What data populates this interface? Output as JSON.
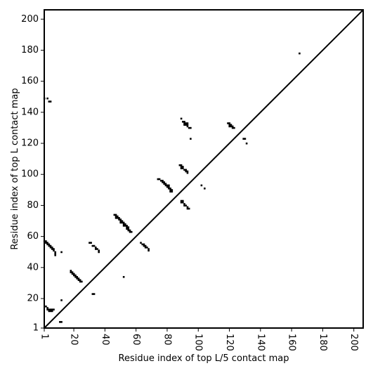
{
  "chart_data": {
    "type": "scatter",
    "xlabel": "Residue index of top L/5 contact map",
    "ylabel": "Residue index of top L contact map",
    "xlim": [
      1,
      206
    ],
    "ylim": [
      1,
      206
    ],
    "xticks": [
      1,
      20,
      40,
      60,
      80,
      100,
      120,
      140,
      160,
      180,
      200
    ],
    "yticks": [
      1,
      20,
      40,
      60,
      80,
      100,
      120,
      140,
      160,
      180,
      200
    ],
    "grid": false,
    "diagonal": true,
    "colors": {
      "points": "#000000",
      "diagonal": "#000000",
      "frame": "#000000"
    },
    "points": [
      [
        1,
        57
      ],
      [
        2,
        57
      ],
      [
        2,
        56
      ],
      [
        3,
        56
      ],
      [
        3,
        55
      ],
      [
        4,
        55
      ],
      [
        4,
        54
      ],
      [
        5,
        54
      ],
      [
        5,
        53
      ],
      [
        6,
        53
      ],
      [
        6,
        52
      ],
      [
        7,
        52
      ],
      [
        7,
        51
      ],
      [
        8,
        50
      ],
      [
        8,
        49
      ],
      [
        8,
        48
      ],
      [
        12,
        50
      ],
      [
        2,
        15
      ],
      [
        3,
        14
      ],
      [
        3,
        13
      ],
      [
        4,
        13
      ],
      [
        4,
        12
      ],
      [
        5,
        13
      ],
      [
        5,
        12
      ],
      [
        6,
        13
      ],
      [
        7,
        13
      ],
      [
        6,
        12
      ],
      [
        12,
        19
      ],
      [
        11,
        5
      ],
      [
        12,
        5
      ],
      [
        1,
        149
      ],
      [
        3,
        149
      ],
      [
        4,
        147
      ],
      [
        5,
        147
      ],
      [
        18,
        38
      ],
      [
        18,
        37
      ],
      [
        19,
        37
      ],
      [
        19,
        36
      ],
      [
        20,
        36
      ],
      [
        20,
        35
      ],
      [
        21,
        35
      ],
      [
        21,
        34
      ],
      [
        22,
        34
      ],
      [
        22,
        33
      ],
      [
        23,
        33
      ],
      [
        23,
        32
      ],
      [
        24,
        32
      ],
      [
        24,
        31
      ],
      [
        25,
        31
      ],
      [
        30,
        56
      ],
      [
        31,
        56
      ],
      [
        32,
        54
      ],
      [
        33,
        54
      ],
      [
        34,
        53
      ],
      [
        34,
        52
      ],
      [
        35,
        52
      ],
      [
        36,
        51
      ],
      [
        36,
        50
      ],
      [
        32,
        23
      ],
      [
        33,
        23
      ],
      [
        46,
        74
      ],
      [
        47,
        74
      ],
      [
        47,
        73
      ],
      [
        48,
        73
      ],
      [
        47,
        72
      ],
      [
        48,
        72
      ],
      [
        49,
        72
      ],
      [
        49,
        71
      ],
      [
        50,
        71
      ],
      [
        50,
        70
      ],
      [
        51,
        70
      ],
      [
        50,
        69
      ],
      [
        51,
        69
      ],
      [
        52,
        69
      ],
      [
        52,
        68
      ],
      [
        53,
        68
      ],
      [
        52,
        67
      ],
      [
        53,
        67
      ],
      [
        54,
        67
      ],
      [
        54,
        66
      ],
      [
        55,
        66
      ],
      [
        54,
        65
      ],
      [
        55,
        65
      ],
      [
        55,
        64
      ],
      [
        56,
        64
      ],
      [
        56,
        63
      ],
      [
        57,
        63
      ],
      [
        52,
        34
      ],
      [
        63,
        56
      ],
      [
        64,
        55
      ],
      [
        65,
        55
      ],
      [
        65,
        54
      ],
      [
        66,
        54
      ],
      [
        66,
        53
      ],
      [
        67,
        53
      ],
      [
        68,
        52
      ],
      [
        68,
        51
      ],
      [
        74,
        97
      ],
      [
        75,
        97
      ],
      [
        76,
        96
      ],
      [
        77,
        96
      ],
      [
        77,
        95
      ],
      [
        78,
        95
      ],
      [
        78,
        94
      ],
      [
        79,
        94
      ],
      [
        79,
        93
      ],
      [
        80,
        93
      ],
      [
        80,
        92
      ],
      [
        81,
        92
      ],
      [
        81,
        91
      ],
      [
        82,
        91
      ],
      [
        82,
        90
      ],
      [
        83,
        90
      ],
      [
        82,
        89
      ],
      [
        83,
        89
      ],
      [
        81,
        93
      ],
      [
        88,
        106
      ],
      [
        89,
        106
      ],
      [
        89,
        105
      ],
      [
        90,
        105
      ],
      [
        89,
        104
      ],
      [
        90,
        104
      ],
      [
        91,
        103
      ],
      [
        92,
        103
      ],
      [
        92,
        102
      ],
      [
        93,
        102
      ],
      [
        93,
        101
      ],
      [
        89,
        83
      ],
      [
        90,
        83
      ],
      [
        89,
        82
      ],
      [
        90,
        82
      ],
      [
        91,
        81
      ],
      [
        91,
        80
      ],
      [
        92,
        80
      ],
      [
        93,
        79
      ],
      [
        93,
        78
      ],
      [
        94,
        78
      ],
      [
        89,
        136
      ],
      [
        90,
        134
      ],
      [
        91,
        134
      ],
      [
        91,
        133
      ],
      [
        92,
        133
      ],
      [
        93,
        133
      ],
      [
        91,
        132
      ],
      [
        92,
        132
      ],
      [
        93,
        132
      ],
      [
        93,
        131
      ],
      [
        94,
        130
      ],
      [
        95,
        130
      ],
      [
        95,
        123
      ],
      [
        102,
        93
      ],
      [
        104,
        91
      ],
      [
        119,
        133
      ],
      [
        120,
        133
      ],
      [
        120,
        132
      ],
      [
        121,
        132
      ],
      [
        120,
        131
      ],
      [
        121,
        131
      ],
      [
        122,
        131
      ],
      [
        122,
        130
      ],
      [
        123,
        130
      ],
      [
        129,
        123
      ],
      [
        130,
        123
      ],
      [
        131,
        120
      ],
      [
        165,
        178
      ]
    ]
  }
}
